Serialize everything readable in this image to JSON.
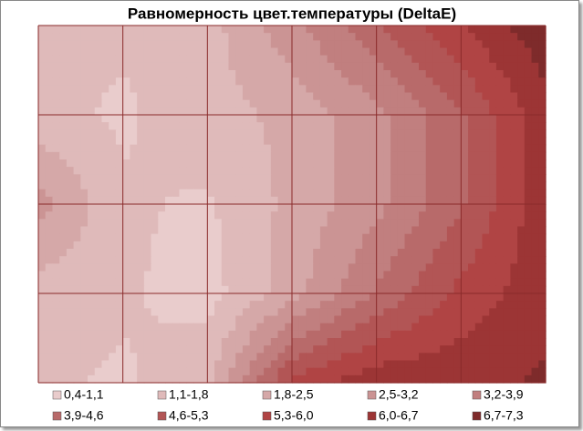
{
  "chart_data": {
    "type": "contour",
    "title": "Равномерность цвет.температуры (DeltaE)",
    "z": [
      [
        1.3,
        1.2,
        1.5,
        3.0,
        4.5,
        6.0,
        7.2
      ],
      [
        1.3,
        1.0,
        1.5,
        2.0,
        3.0,
        4.5,
        6.5
      ],
      [
        2.8,
        1.2,
        1.0,
        2.0,
        3.0,
        4.5,
        6.5
      ],
      [
        1.5,
        1.2,
        0.8,
        2.2,
        4.0,
        5.5,
        6.5
      ],
      [
        1.2,
        1.0,
        1.6,
        5.5,
        6.5,
        6.5,
        6.8
      ]
    ],
    "levels": [
      0.4,
      1.1,
      1.8,
      2.5,
      3.2,
      3.9,
      4.6,
      5.3,
      6.0,
      6.7,
      7.3
    ],
    "legend": [
      "0,4-1,1",
      "1,1-1,8",
      "1,8-2,5",
      "2,5-3,2",
      "3,2-3,9",
      "3,9-4,6",
      "4,6-5,3",
      "5,3-6,0",
      "6,0-6,7",
      "6,7-7,3"
    ],
    "colors": [
      "#e9cccc",
      "#dfbaba",
      "#d5a8a8",
      "#cb9494",
      "#c17f7f",
      "#b86a6a",
      "#b25555",
      "#b04444",
      "#9c3535",
      "#7e2b2b"
    ]
  }
}
